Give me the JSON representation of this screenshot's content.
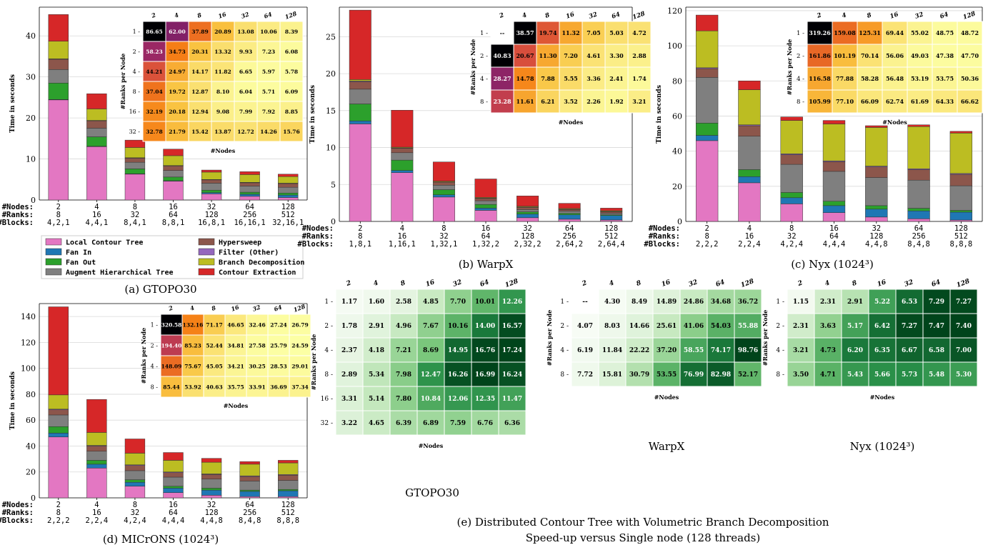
{
  "colors": {
    "Local Contour Tree": "#e377c2",
    "Fan In": "#1f77b4",
    "Fan Out": "#2ca02c",
    "Augment Hierarchical Tree": "#7f7f7f",
    "Hypersweep": "#8c564b",
    "Filter (Other)": "#9467bd",
    "Branch Decomposition": "#bcbd22",
    "Contour Extraction": "#d62728"
  },
  "legend": [
    "Local Contour Tree",
    "Hypersweep",
    "Fan In",
    "Filter (Other)",
    "Fan Out",
    "Branch Decomposition",
    "Augment Hierarchical Tree",
    "Contour Extraction"
  ],
  "axis_text": {
    "time": "Time in seconds",
    "rpn": "#Ranks per Node",
    "nodes": "#Nodes",
    "row_nodes": "#Nodes:",
    "row_ranks": "#Ranks:",
    "row_blocks": "#Blocks:"
  },
  "captions": {
    "a": "(a) GTOPO30",
    "b": "(b) WarpX",
    "c": "(c) Nyx (1024³)",
    "d": "(d) MICrONS (1024³)",
    "e1": "(e) Distributed Contour Tree with Volumetric Branch Decomposition",
    "e2": "Speed-up versus Single node (128 threads)",
    "g_gtopo": "GTOPO30",
    "g_warpx": "WarpX",
    "g_nyx": "Nyx (1024³)"
  },
  "chart_data": [
    {
      "id": "a",
      "type": "bar",
      "stacked": true,
      "ylabel": "Time in seconds",
      "ylim": [
        0,
        47
      ],
      "yticks": [
        0,
        10,
        20,
        30,
        40
      ],
      "nodes": [
        "2",
        "4",
        "8",
        "16",
        "32",
        "64",
        "128"
      ],
      "ranks": [
        "8",
        "16",
        "32",
        "64",
        "128",
        "256",
        "512"
      ],
      "blocks": [
        "4,2,1",
        "4,4,1",
        "8,4,1",
        "8,8,1",
        "16,8,1",
        "16,16,1",
        "32,16,1"
      ],
      "series": [
        {
          "name": "Local Contour Tree",
          "values": [
            24.4,
            13.0,
            6.3,
            4.6,
            1.5,
            0.9,
            0.6
          ]
        },
        {
          "name": "Fan In",
          "values": [
            0.1,
            0.1,
            0.1,
            0.1,
            0.3,
            0.5,
            0.6
          ]
        },
        {
          "name": "Fan Out",
          "values": [
            4,
            2.3,
            1.2,
            0.9,
            0.6,
            0.5,
            0.5
          ]
        },
        {
          "name": "Augment Hierarchical Tree",
          "values": [
            3.3,
            2.1,
            1.6,
            1.6,
            1.7,
            1.5,
            1.4
          ]
        },
        {
          "name": "Hypersweep",
          "values": [
            2.5,
            1.8,
            1.0,
            1.1,
            0.8,
            0.8,
            0.9
          ]
        },
        {
          "name": "Filter (Other)",
          "values": [
            0.1,
            0.1,
            0.1,
            0.1,
            0.1,
            0.1,
            0.1
          ]
        },
        {
          "name": "Branch Decomposition",
          "values": [
            4.3,
            2.8,
            2.5,
            2.4,
            1.8,
            1.9,
            1.6
          ]
        },
        {
          "name": "Contour Extraction",
          "values": [
            6.5,
            3.7,
            1.8,
            1.6,
            0.5,
            0.7,
            0.6
          ]
        }
      ],
      "heatmap": {
        "cols": [
          "2",
          "4",
          "8",
          "16",
          "32",
          "64",
          "128"
        ],
        "rows": [
          "1",
          "2",
          "4",
          "8",
          "16",
          "32"
        ],
        "xlabel": "#Nodes",
        "ylabel": "#Ranks per Node",
        "cells": [
          [
            "86.65",
            "62.00",
            "37.89",
            "20.89",
            "13.08",
            "10.06",
            "8.39"
          ],
          [
            "58.23",
            "34.73",
            "20.31",
            "13.32",
            "9.93",
            "7.23",
            "6.08"
          ],
          [
            "44.21",
            "24.97",
            "14.17",
            "11.82",
            "6.65",
            "5.97",
            "5.78"
          ],
          [
            "37.04",
            "19.72",
            "12.87",
            "8.10",
            "6.04",
            "5.71",
            "6.09"
          ],
          [
            "32.19",
            "20.18",
            "12.94",
            "9.08",
            "7.99",
            "7.92",
            "8.85"
          ],
          [
            "32.78",
            "21.79",
            "15.42",
            "13.87",
            "12.72",
            "14.26",
            "15.76"
          ]
        ],
        "vmin": 5,
        "vmax": 80
      }
    },
    {
      "id": "b",
      "type": "bar",
      "stacked": true,
      "ylabel": "Time in seconds",
      "ylim": [
        0,
        29
      ],
      "yticks": [
        0,
        5,
        10,
        15,
        20,
        25
      ],
      "nodes": [
        "2",
        "4",
        "8",
        "16",
        "32",
        "64",
        "128"
      ],
      "ranks": [
        "8",
        "16",
        "32",
        "64",
        "128",
        "256",
        "512"
      ],
      "blocks": [
        "1,8,1",
        "1,16,1",
        "1,32,1",
        "1,32,2",
        "2,32,2",
        "2,64,2",
        "2,64,4"
      ],
      "series": [
        {
          "name": "Local Contour Tree",
          "values": [
            13.2,
            6.6,
            3.3,
            1.5,
            0.5,
            0.3,
            0.2
          ]
        },
        {
          "name": "Fan In",
          "values": [
            0.4,
            0.3,
            0.3,
            0.3,
            0.5,
            0.6,
            0.6
          ]
        },
        {
          "name": "Fan Out",
          "values": [
            2.3,
            1.4,
            0.7,
            0.5,
            0.3,
            0.2,
            0.1
          ]
        },
        {
          "name": "Augment Hierarchical Tree",
          "values": [
            2.0,
            1.0,
            0.6,
            0.5,
            0.3,
            0.3,
            0.2
          ]
        },
        {
          "name": "Hypersweep",
          "values": [
            1.0,
            0.6,
            0.4,
            0.3,
            0.3,
            0.2,
            0.2
          ]
        },
        {
          "name": "Filter (Other)",
          "values": [
            0.1,
            0.05,
            0.05,
            0.05,
            0.05,
            0.05,
            0.05
          ]
        },
        {
          "name": "Branch Decomposition",
          "values": [
            0.2,
            0.1,
            0.1,
            0.1,
            0.1,
            0.1,
            0.1
          ]
        },
        {
          "name": "Contour Extraction",
          "values": [
            9.4,
            5.0,
            2.6,
            2.5,
            1.4,
            0.7,
            0.35
          ]
        }
      ],
      "heatmap": {
        "cols": [
          "2",
          "4",
          "8",
          "16",
          "32",
          "64",
          "128"
        ],
        "rows": [
          "1",
          "2",
          "4",
          "8"
        ],
        "xlabel": "#Nodes",
        "ylabel": "#Ranks per Node",
        "cells": [
          [
            "--",
            "38.57",
            "19.74",
            "11.32",
            "7.05",
            "5.03",
            "4.72"
          ],
          [
            "40.83",
            "20.67",
            "11.30",
            "7.20",
            "4.61",
            "3.30",
            "2.88"
          ],
          [
            "28.27",
            "14.78",
            "7.88",
            "5.55",
            "3.36",
            "2.41",
            "1.74"
          ],
          [
            "23.28",
            "11.61",
            "6.21",
            "3.52",
            "2.26",
            "1.92",
            "3.21"
          ]
        ],
        "vmin": 1,
        "vmax": 38
      }
    },
    {
      "id": "c",
      "type": "bar",
      "stacked": true,
      "ylabel": "Time in seconds",
      "ylim": [
        0,
        122
      ],
      "yticks": [
        0,
        20,
        40,
        60,
        80,
        100,
        120
      ],
      "nodes": [
        "2",
        "4",
        "8",
        "16",
        "32",
        "64",
        "128"
      ],
      "ranks": [
        "8",
        "16",
        "32",
        "64",
        "128",
        "256",
        "512"
      ],
      "blocks": [
        "2,2,2",
        "2,2,4",
        "4,2,4",
        "4,4,4",
        "4,4,8",
        "8,4,8",
        "8,8,8"
      ],
      "series": [
        {
          "name": "Local Contour Tree",
          "values": [
            46,
            22,
            10,
            5,
            2.5,
            1.5,
            0.8
          ]
        },
        {
          "name": "Fan In",
          "values": [
            3,
            3.5,
            3.5,
            4,
            4.5,
            4.5,
            4.5
          ]
        },
        {
          "name": "Fan Out",
          "values": [
            7,
            4,
            3,
            2.5,
            2,
            1.5,
            1
          ]
        },
        {
          "name": "Augment Hierarchical Tree",
          "values": [
            26,
            19,
            16,
            17,
            16,
            16,
            14
          ]
        },
        {
          "name": "Hypersweep",
          "values": [
            5,
            6,
            5.5,
            5.5,
            6,
            6,
            6.5
          ]
        },
        {
          "name": "Filter (Other)",
          "values": [
            0.5,
            0.5,
            0.5,
            0.5,
            0.5,
            0.5,
            0.5
          ]
        },
        {
          "name": "Branch Decomposition",
          "values": [
            21,
            20,
            19,
            21,
            22,
            24,
            23
          ]
        },
        {
          "name": "Contour Extraction",
          "values": [
            9,
            5,
            2,
            2,
            1,
            1,
            1
          ]
        }
      ],
      "heatmap": {
        "cols": [
          "2",
          "4",
          "8",
          "16",
          "32",
          "64",
          "128"
        ],
        "rows": [
          "1",
          "2",
          "4",
          "8"
        ],
        "xlabel": "#Nodes",
        "ylabel": "#Ranks per Node",
        "cells": [
          [
            "319.26",
            "159.08",
            "125.31",
            "69.44",
            "55.02",
            "48.75",
            "48.72"
          ],
          [
            "161.86",
            "101.19",
            "70.14",
            "56.06",
            "49.03",
            "47.38",
            "47.70"
          ],
          [
            "116.58",
            "77.88",
            "58.28",
            "56.48",
            "53.19",
            "53.75",
            "50.36"
          ],
          [
            "105.99",
            "77.10",
            "66.09",
            "62.74",
            "61.69",
            "64.33",
            "66.62"
          ]
        ],
        "vmin": 45,
        "vmax": 300
      }
    },
    {
      "id": "d",
      "type": "bar",
      "stacked": true,
      "ylabel": "Time in seconds",
      "ylim": [
        0,
        150
      ],
      "yticks": [
        0,
        20,
        40,
        60,
        80,
        100,
        120,
        140
      ],
      "nodes": [
        "2",
        "4",
        "8",
        "16",
        "32",
        "64",
        "128"
      ],
      "ranks": [
        "8",
        "16",
        "32",
        "64",
        "128",
        "256",
        "512"
      ],
      "blocks": [
        "2,2,2",
        "2,2,4",
        "4,2,4",
        "4,4,4",
        "4,4,8",
        "8,4,8",
        "8,8,8"
      ],
      "series": [
        {
          "name": "Local Contour Tree",
          "values": [
            47,
            23,
            9,
            4,
            2,
            1,
            1
          ]
        },
        {
          "name": "Fan In",
          "values": [
            3,
            3,
            3,
            3.5,
            4,
            4,
            4.5
          ]
        },
        {
          "name": "Fan Out",
          "values": [
            5,
            3,
            2,
            1.5,
            1.5,
            1,
            1
          ]
        },
        {
          "name": "Augment Hierarchical Tree",
          "values": [
            9,
            7,
            7,
            7,
            7,
            7,
            7
          ]
        },
        {
          "name": "Hypersweep",
          "values": [
            4,
            4,
            4,
            3.5,
            3.5,
            3.5,
            4
          ]
        },
        {
          "name": "Filter (Other)",
          "values": [
            0.5,
            0.5,
            0.5,
            0.5,
            0.5,
            0.5,
            0.5
          ]
        },
        {
          "name": "Branch Decomposition",
          "values": [
            11,
            10,
            9,
            9,
            9,
            9,
            9
          ]
        },
        {
          "name": "Contour Extraction",
          "values": [
            68,
            25.5,
            11,
            6,
            3,
            2,
            2
          ]
        }
      ],
      "heatmap": {
        "cols": [
          "2",
          "4",
          "8",
          "16",
          "32",
          "64",
          "128"
        ],
        "rows": [
          "1",
          "2",
          "4",
          "8"
        ],
        "xlabel": "#Nodes",
        "ylabel": "#Ranks per Node",
        "cells": [
          [
            "320.58",
            "132.16",
            "71.17",
            "46.65",
            "32.46",
            "27.24",
            "26.79"
          ],
          [
            "194.40",
            "85.23",
            "52.44",
            "34.81",
            "27.58",
            "25.79",
            "24.59"
          ],
          [
            "148.09",
            "75.67",
            "45.05",
            "34.21",
            "30.25",
            "28.53",
            "29.01"
          ],
          [
            "85.44",
            "53.92",
            "40.63",
            "35.75",
            "33.91",
            "36.69",
            "37.34"
          ]
        ],
        "vmin": 25,
        "vmax": 300
      }
    },
    {
      "id": "eg",
      "type": "heatmap",
      "xlabel": "#Nodes",
      "ylabel": "#Ranks per Node",
      "cols": [
        "2",
        "4",
        "8",
        "16",
        "32",
        "64",
        "128"
      ],
      "rows": [
        "1",
        "2",
        "4",
        "8",
        "16",
        "32"
      ],
      "cells": [
        [
          "1.17",
          "1.60",
          "2.58",
          "4.85",
          "7.70",
          "10.01",
          "12.26"
        ],
        [
          "1.78",
          "2.91",
          "4.96",
          "7.67",
          "10.16",
          "14.00",
          "16.57"
        ],
        [
          "2.37",
          "4.18",
          "7.21",
          "8.69",
          "14.95",
          "16.76",
          "17.24"
        ],
        [
          "2.89",
          "5.34",
          "7.98",
          "12.47",
          "16.26",
          "16.99",
          "16.24"
        ],
        [
          "3.31",
          "5.14",
          "7.80",
          "10.84",
          "12.06",
          "12.35",
          "11.47"
        ],
        [
          "3.22",
          "4.65",
          "6.39",
          "6.89",
          "7.59",
          "6.76",
          "6.36"
        ]
      ],
      "vmin": 1,
      "vmax": 17
    },
    {
      "id": "ew",
      "type": "heatmap",
      "xlabel": "#Nodes",
      "ylabel": "#Ranks per Node",
      "cols": [
        "2",
        "4",
        "8",
        "16",
        "32",
        "64",
        "128"
      ],
      "rows": [
        "1",
        "2",
        "4",
        "8"
      ],
      "cells": [
        [
          "--",
          "4.30",
          "8.49",
          "14.89",
          "24.86",
          "34.68",
          "36.72"
        ],
        [
          "4.07",
          "8.03",
          "14.66",
          "25.61",
          "41.06",
          "54.03",
          "55.88"
        ],
        [
          "6.19",
          "11.84",
          "22.22",
          "37.20",
          "58.55",
          "74.17",
          "98.76"
        ],
        [
          "7.72",
          "15.81",
          "30.79",
          "53.55",
          "76.99",
          "82.98",
          "52.17"
        ]
      ],
      "vmin": 4,
      "vmax": 90
    },
    {
      "id": "en",
      "type": "heatmap",
      "xlabel": "#Nodes",
      "ylabel": "#Ranks per Node",
      "cols": [
        "2",
        "4",
        "8",
        "16",
        "32",
        "64",
        "128"
      ],
      "rows": [
        "1",
        "2",
        "4",
        "8"
      ],
      "cells": [
        [
          "1.15",
          "2.31",
          "2.91",
          "5.22",
          "6.53",
          "7.29",
          "7.27"
        ],
        [
          "2.31",
          "3.63",
          "5.17",
          "6.42",
          "7.27",
          "7.47",
          "7.40"
        ],
        [
          "3.21",
          "4.73",
          "6.20",
          "6.35",
          "6.67",
          "6.58",
          "7.00"
        ],
        [
          "3.50",
          "4.71",
          "5.43",
          "5.66",
          "5.73",
          "5.48",
          "5.30"
        ]
      ],
      "vmin": 1,
      "vmax": 7.4
    }
  ]
}
